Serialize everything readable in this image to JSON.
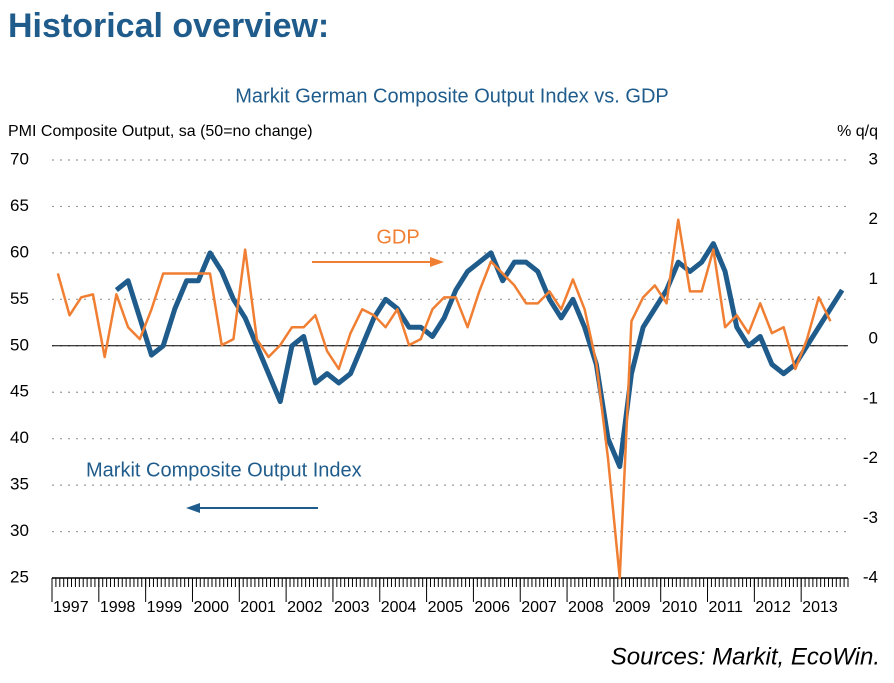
{
  "header": "Historical overview:",
  "source": "Sources: Markit, EcoWin.",
  "chart_data": {
    "type": "line",
    "title": "Markit German Composite Output Index vs. GDP",
    "ylabel": "PMI Composite Output, sa (50=no change)",
    "y2label": "% q/q",
    "annotations": [
      "GDP",
      "Markit Composite Output Index"
    ],
    "x": [
      1997.125,
      1997.375,
      1997.625,
      1997.875,
      1998.125,
      1998.375,
      1998.625,
      1998.875,
      1999.125,
      1999.375,
      1999.625,
      1999.875,
      2000.125,
      2000.375,
      2000.625,
      2000.875,
      2001.125,
      2001.375,
      2001.625,
      2001.875,
      2002.125,
      2002.375,
      2002.625,
      2002.875,
      2003.125,
      2003.375,
      2003.625,
      2003.875,
      2004.125,
      2004.375,
      2004.625,
      2004.875,
      2005.125,
      2005.375,
      2005.625,
      2005.875,
      2006.125,
      2006.375,
      2006.625,
      2006.875,
      2007.125,
      2007.375,
      2007.625,
      2007.875,
      2008.125,
      2008.375,
      2008.625,
      2008.875,
      2009.125,
      2009.375,
      2009.625,
      2009.875,
      2010.125,
      2010.375,
      2010.625,
      2010.875,
      2011.125,
      2011.375,
      2011.625,
      2011.875,
      2012.125,
      2012.375,
      2012.625,
      2012.875,
      2013.125,
      2013.375,
      2013.625,
      2013.875
    ],
    "xlim": [
      1997,
      2014
    ],
    "xticks": [
      1997,
      1998,
      1999,
      2000,
      2001,
      2002,
      2003,
      2004,
      2005,
      2006,
      2007,
      2008,
      2009,
      2010,
      2011,
      2012,
      2013
    ],
    "ylim": [
      25,
      70
    ],
    "yticks": [
      25,
      30,
      35,
      40,
      45,
      50,
      55,
      60,
      65,
      70
    ],
    "y2lim": [
      -4,
      3
    ],
    "y2ticks": [
      -4,
      -3,
      -2,
      -1,
      0,
      1,
      2,
      3
    ],
    "refline": 50,
    "grid": true,
    "series": [
      {
        "name": "Markit Composite Output Index",
        "color": "#1f5c8c",
        "axis": "y",
        "values": [
          null,
          null,
          null,
          null,
          null,
          56,
          57,
          53,
          49,
          50,
          54,
          57,
          57,
          60,
          58,
          55,
          53,
          50,
          47,
          44,
          50,
          51,
          46,
          47,
          46,
          47,
          50,
          53,
          55,
          54,
          52,
          52,
          51,
          53,
          56,
          58,
          59,
          60,
          57,
          59,
          59,
          58,
          55,
          53,
          55,
          52,
          48,
          40,
          37,
          47,
          52,
          54,
          56,
          59,
          58,
          59,
          61,
          58,
          52,
          50,
          51,
          48,
          47,
          48,
          50,
          52,
          54,
          56
        ]
      },
      {
        "name": "GDP",
        "color": "#f07f33",
        "axis": "y2",
        "values": [
          1.1,
          0.4,
          0.7,
          0.75,
          -0.3,
          0.75,
          0.2,
          0,
          0.5,
          1.1,
          1.1,
          1.1,
          1.1,
          1.1,
          -0.1,
          0,
          1.5,
          0,
          -0.3,
          -0.1,
          0.2,
          0.2,
          0.4,
          -0.2,
          -0.5,
          0.1,
          0.5,
          0.4,
          0.2,
          0.5,
          -0.1,
          0,
          0.5,
          0.7,
          0.7,
          0.2,
          0.8,
          1.3,
          1.1,
          0.9,
          0.6,
          0.6,
          0.8,
          0.5,
          1.0,
          0.5,
          -0.4,
          -2.0,
          -4.0,
          0.3,
          0.7,
          0.9,
          0.6,
          2.0,
          0.8,
          0.8,
          1.5,
          0.2,
          0.4,
          0.1,
          0.6,
          0.1,
          0.2,
          -0.5,
          0,
          0.7,
          0.3,
          null
        ]
      }
    ]
  }
}
